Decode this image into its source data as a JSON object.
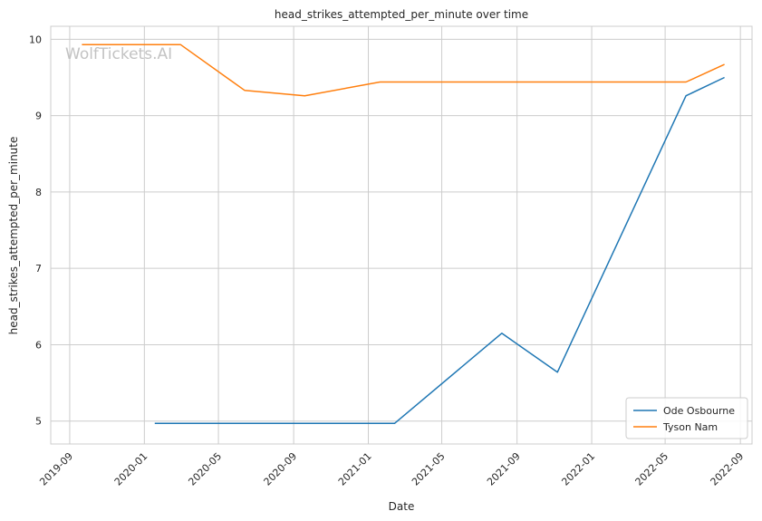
{
  "chart_data": {
    "type": "line",
    "title": "head_strikes_attempted_per_minute over time",
    "xlabel": "Date",
    "ylabel": "head_strikes_attempted_per_minute",
    "watermark": "WolfTickets.AI",
    "grid": true,
    "legend_position": "lower-right",
    "xlim": [
      "2019-08-01",
      "2022-09-20"
    ],
    "ylim": [
      4.7,
      10.17
    ],
    "x_ticks": [
      {
        "date": "2019-09-01",
        "label": "2019-09"
      },
      {
        "date": "2020-01-01",
        "label": "2020-01"
      },
      {
        "date": "2020-05-01",
        "label": "2020-05"
      },
      {
        "date": "2020-09-01",
        "label": "2020-09"
      },
      {
        "date": "2021-01-01",
        "label": "2021-01"
      },
      {
        "date": "2021-05-01",
        "label": "2021-05"
      },
      {
        "date": "2021-09-01",
        "label": "2021-09"
      },
      {
        "date": "2022-01-01",
        "label": "2022-01"
      },
      {
        "date": "2022-05-01",
        "label": "2022-05"
      },
      {
        "date": "2022-09-01",
        "label": "2022-09"
      }
    ],
    "y_ticks": [
      5,
      6,
      7,
      8,
      9,
      10
    ],
    "series": [
      {
        "name": "Ode Osbourne",
        "color": "#1f77b4",
        "x": [
          "2020-01-18",
          "2021-02-13",
          "2021-08-07",
          "2021-11-06",
          "2022-06-04",
          "2022-08-06"
        ],
        "y": [
          4.97,
          4.97,
          6.15,
          5.64,
          9.26,
          9.5
        ]
      },
      {
        "name": "Tyson Nam",
        "color": "#ff7f0e",
        "x": [
          "2019-09-21",
          "2020-02-29",
          "2020-06-13",
          "2020-09-19",
          "2021-01-20",
          "2022-06-04",
          "2022-08-06"
        ],
        "y": [
          9.93,
          9.93,
          9.33,
          9.26,
          9.44,
          9.44,
          9.67
        ]
      }
    ]
  }
}
